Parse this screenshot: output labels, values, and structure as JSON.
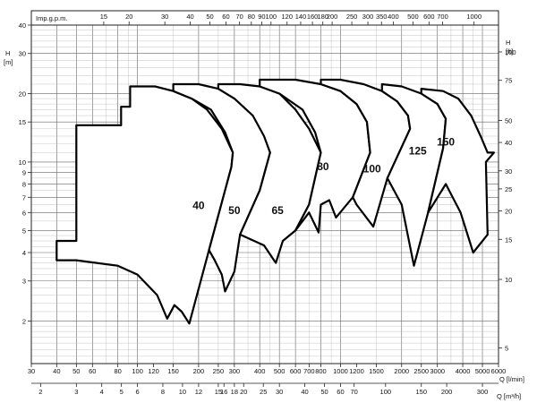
{
  "chart_data": {
    "type": "line",
    "title": "",
    "scale": "log-log",
    "grid": true,
    "axes": {
      "top_gpm": {
        "label": "Imp.g.p.m.",
        "ticks": [
          15,
          20,
          30,
          40,
          50,
          60,
          70,
          80,
          90,
          100,
          120,
          140,
          160,
          180,
          200,
          250,
          300,
          350,
          400,
          500,
          600,
          700,
          1000
        ],
        "tick_labels": [
          "15",
          "20",
          "30",
          "40",
          "50",
          "60",
          "70",
          "80",
          "90",
          "100",
          "120",
          "140",
          "160",
          "180",
          "200",
          "250",
          "300",
          "350",
          "400",
          "500",
          "600",
          "700",
          "1000"
        ],
        "range": [
          6.6,
          1320
        ]
      },
      "bottom_lmin": {
        "label": "Q [l/min]",
        "ticks": [
          30,
          40,
          50,
          60,
          80,
          100,
          120,
          150,
          200,
          250,
          300,
          400,
          500,
          600,
          700,
          800,
          1000,
          1200,
          1500,
          2000,
          2500,
          3000,
          4000,
          5000,
          6000
        ],
        "tick_labels": [
          "30",
          "40",
          "50",
          "60",
          "80",
          "100",
          "120",
          "150",
          "200",
          "250",
          "300",
          "400",
          "500",
          "600",
          "700",
          "800",
          "1000",
          "1200",
          "1500",
          "2000",
          "2500",
          "3000",
          "4000",
          "5000",
          "6000"
        ],
        "range": [
          30,
          6000
        ]
      },
      "bottom_m3h": {
        "label": "Q [m³/h]",
        "ticks": [
          2,
          3,
          4,
          5,
          6,
          8,
          10,
          12,
          15,
          16,
          18,
          20,
          25,
          30,
          40,
          50,
          60,
          70,
          100,
          150,
          200,
          300
        ],
        "tick_labels": [
          "2",
          "3",
          "4",
          "5",
          "6",
          "8",
          "10",
          "12",
          "15",
          "16",
          "18",
          "20",
          "25",
          "30",
          "40",
          "50",
          "60",
          "70",
          "100",
          "150",
          "200",
          "300"
        ],
        "range": [
          1.8,
          360
        ]
      },
      "left_m": {
        "label": "H\n[m]",
        "ticks": [
          2,
          3,
          4,
          5,
          6,
          7,
          8,
          9,
          10,
          15,
          20,
          30,
          40
        ],
        "tick_labels": [
          "2",
          "3",
          "4",
          "5",
          "6",
          "7",
          "8",
          "9",
          "10",
          "15",
          "20",
          "30",
          "40"
        ],
        "range": [
          1.3,
          40
        ]
      },
      "right_ft": {
        "label": "H\n[ft]",
        "ticks": [
          5,
          10,
          15,
          20,
          25,
          30,
          40,
          50,
          75,
          100
        ],
        "tick_labels": [
          "5",
          "10",
          "15",
          "20",
          "25",
          "30",
          "40",
          "50",
          "75",
          "100"
        ],
        "range": [
          4.27,
          131.2
        ]
      }
    },
    "series": [
      {
        "name": "40",
        "label_at": [
          200,
          6.2
        ],
        "envelope": [
          [
            40,
            3.7
          ],
          [
            40,
            4.5
          ],
          [
            50,
            4.5
          ],
          [
            50,
            14.5
          ],
          [
            83,
            14.5
          ],
          [
            83,
            17.5
          ],
          [
            92,
            17.5
          ],
          [
            92,
            21.5
          ],
          [
            122,
            21.5
          ],
          [
            150,
            20.5
          ],
          [
            185,
            19
          ],
          [
            220,
            17
          ],
          [
            260,
            14
          ],
          [
            295,
            11
          ],
          [
            290,
            9.5
          ],
          [
            225,
            4.1
          ],
          [
            180,
            1.95
          ],
          [
            165,
            2.2
          ],
          [
            152,
            2.35
          ],
          [
            140,
            2.05
          ],
          [
            125,
            2.6
          ],
          [
            100,
            3.2
          ],
          [
            80,
            3.5
          ],
          [
            50,
            3.7
          ],
          [
            40,
            3.7
          ]
        ]
      },
      {
        "name": "50",
        "label_at": [
          300,
          5.9
        ],
        "envelope": [
          [
            225,
            4.1
          ],
          [
            290,
            9.5
          ],
          [
            295,
            11
          ],
          [
            270,
            13.5
          ],
          [
            230,
            17
          ],
          [
            185,
            19
          ],
          [
            150,
            20.5
          ],
          [
            150,
            22
          ],
          [
            200,
            22
          ],
          [
            250,
            21
          ],
          [
            300,
            19
          ],
          [
            360,
            17
          ],
          [
            410,
            14
          ],
          [
            450,
            11
          ],
          [
            400,
            7.5
          ],
          [
            320,
            4.8
          ],
          [
            300,
            3.3
          ],
          [
            270,
            2.7
          ],
          [
            260,
            3.2
          ],
          [
            240,
            3.7
          ],
          [
            225,
            4.1
          ]
        ]
      },
      {
        "name": "65",
        "label_at": [
          490,
          5.9
        ],
        "envelope": [
          [
            320,
            4.8
          ],
          [
            400,
            7.5
          ],
          [
            450,
            11
          ],
          [
            420,
            13
          ],
          [
            370,
            16
          ],
          [
            300,
            19
          ],
          [
            250,
            21
          ],
          [
            250,
            22
          ],
          [
            320,
            22
          ],
          [
            400,
            21.5
          ],
          [
            500,
            20
          ],
          [
            600,
            17
          ],
          [
            700,
            14
          ],
          [
            800,
            11
          ],
          [
            700,
            6.5
          ],
          [
            600,
            5
          ],
          [
            520,
            4.5
          ],
          [
            480,
            3.6
          ],
          [
            420,
            4.3
          ],
          [
            320,
            4.8
          ]
        ]
      },
      {
        "name": "80",
        "label_at": [
          820,
          9.2
        ],
        "envelope": [
          [
            600,
            5
          ],
          [
            700,
            6.5
          ],
          [
            800,
            11
          ],
          [
            750,
            13.5
          ],
          [
            650,
            17
          ],
          [
            500,
            20
          ],
          [
            400,
            21.5
          ],
          [
            400,
            23
          ],
          [
            600,
            23
          ],
          [
            800,
            22
          ],
          [
            1000,
            20.5
          ],
          [
            1200,
            18
          ],
          [
            1350,
            15
          ],
          [
            1400,
            11
          ],
          [
            1150,
            7
          ],
          [
            950,
            5.7
          ],
          [
            880,
            6.8
          ],
          [
            800,
            6.5
          ],
          [
            780,
            4.9
          ],
          [
            700,
            6
          ],
          [
            600,
            5
          ]
        ]
      },
      {
        "name": "100",
        "label_at": [
          1430,
          9.0
        ],
        "envelope": [
          [
            1150,
            7
          ],
          [
            1400,
            11
          ],
          [
            1350,
            15
          ],
          [
            1200,
            18
          ],
          [
            1000,
            20.5
          ],
          [
            800,
            22
          ],
          [
            800,
            23
          ],
          [
            1000,
            23
          ],
          [
            1300,
            22
          ],
          [
            1600,
            20.5
          ],
          [
            1900,
            18.5
          ],
          [
            2150,
            16
          ],
          [
            2200,
            14
          ],
          [
            1700,
            8.5
          ],
          [
            1450,
            5.2
          ],
          [
            1200,
            6.5
          ],
          [
            1150,
            7
          ]
        ]
      },
      {
        "name": "125",
        "label_at": [
          2400,
          10.8
        ],
        "envelope": [
          [
            1700,
            8.5
          ],
          [
            2200,
            14
          ],
          [
            2150,
            16
          ],
          [
            1900,
            18.5
          ],
          [
            1600,
            20.5
          ],
          [
            1600,
            22
          ],
          [
            2000,
            21.5
          ],
          [
            2500,
            20
          ],
          [
            3000,
            18
          ],
          [
            3300,
            15.5
          ],
          [
            3200,
            11.5
          ],
          [
            2700,
            6
          ],
          [
            2300,
            3.5
          ],
          [
            2000,
            6.5
          ],
          [
            1700,
            8.5
          ]
        ]
      },
      {
        "name": "150",
        "label_at": [
          3300,
          11.8
        ],
        "envelope": [
          [
            2700,
            6
          ],
          [
            3200,
            11.5
          ],
          [
            3300,
            15.5
          ],
          [
            3000,
            18
          ],
          [
            2500,
            20
          ],
          [
            2500,
            21
          ],
          [
            3200,
            20.5
          ],
          [
            3800,
            19
          ],
          [
            4400,
            16
          ],
          [
            4900,
            13
          ],
          [
            5300,
            11
          ],
          [
            5700,
            11
          ],
          [
            5200,
            10
          ],
          [
            5300,
            4.8
          ],
          [
            4500,
            4
          ],
          [
            3900,
            6
          ],
          [
            3300,
            8
          ],
          [
            2700,
            6
          ]
        ]
      }
    ]
  }
}
